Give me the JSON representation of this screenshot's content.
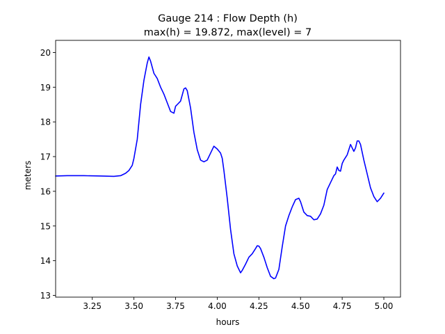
{
  "chart_data": {
    "type": "line",
    "title": "Gauge 214 : Flow Depth (h)",
    "subtitle": "max(h) =  19.872,    max(level) = 7",
    "xlabel": "hours",
    "ylabel": "meters",
    "xlim": [
      3.03,
      5.1
    ],
    "ylim": [
      12.95,
      20.35
    ],
    "xticks": [
      3.25,
      3.5,
      3.75,
      4.0,
      4.25,
      4.5,
      4.75,
      5.0
    ],
    "xtick_labels": [
      "3.25",
      "3.50",
      "3.75",
      "4.00",
      "4.25",
      "4.50",
      "4.75",
      "5.00"
    ],
    "yticks": [
      13,
      14,
      15,
      16,
      17,
      18,
      19,
      20
    ],
    "ytick_labels": [
      "13",
      "14",
      "15",
      "16",
      "17",
      "18",
      "19",
      "20"
    ],
    "grid": false,
    "series": [
      {
        "color": "#0000ff",
        "x": [
          3.03,
          3.1,
          3.2,
          3.3,
          3.38,
          3.42,
          3.45,
          3.47,
          3.49,
          3.5,
          3.52,
          3.54,
          3.56,
          3.58,
          3.59,
          3.6,
          3.62,
          3.64,
          3.66,
          3.68,
          3.7,
          3.72,
          3.74,
          3.75,
          3.76,
          3.78,
          3.8,
          3.81,
          3.82,
          3.84,
          3.86,
          3.88,
          3.9,
          3.92,
          3.94,
          3.96,
          3.98,
          4.0,
          4.02,
          4.03,
          4.04,
          4.06,
          4.08,
          4.1,
          4.12,
          4.14,
          4.15,
          4.17,
          4.19,
          4.21,
          4.23,
          4.24,
          4.25,
          4.26,
          4.28,
          4.3,
          4.32,
          4.34,
          4.35,
          4.37,
          4.39,
          4.41,
          4.43,
          4.45,
          4.47,
          4.49,
          4.5,
          4.52,
          4.54,
          4.56,
          4.58,
          4.6,
          4.62,
          4.64,
          4.66,
          4.68,
          4.7,
          4.71,
          4.72,
          4.73,
          4.74,
          4.75,
          4.76,
          4.78,
          4.8,
          4.81,
          4.82,
          4.83,
          4.84,
          4.85,
          4.86,
          4.88,
          4.9,
          4.92,
          4.94,
          4.96,
          4.98,
          5.0
        ],
        "y": [
          16.44,
          16.45,
          16.45,
          16.44,
          16.43,
          16.45,
          16.52,
          16.6,
          16.75,
          16.95,
          17.5,
          18.5,
          19.2,
          19.7,
          19.87,
          19.75,
          19.4,
          19.25,
          19.0,
          18.8,
          18.55,
          18.3,
          18.25,
          18.45,
          18.5,
          18.6,
          18.95,
          18.98,
          18.9,
          18.4,
          17.7,
          17.2,
          16.9,
          16.85,
          16.9,
          17.1,
          17.3,
          17.22,
          17.1,
          16.95,
          16.6,
          15.8,
          14.9,
          14.2,
          13.85,
          13.65,
          13.72,
          13.9,
          14.1,
          14.2,
          14.35,
          14.43,
          14.42,
          14.35,
          14.1,
          13.8,
          13.55,
          13.48,
          13.5,
          13.75,
          14.4,
          15.0,
          15.3,
          15.55,
          15.76,
          15.8,
          15.7,
          15.4,
          15.3,
          15.28,
          15.18,
          15.2,
          15.35,
          15.6,
          16.05,
          16.25,
          16.45,
          16.5,
          16.7,
          16.6,
          16.58,
          16.8,
          16.9,
          17.05,
          17.35,
          17.25,
          17.15,
          17.25,
          17.45,
          17.45,
          17.35,
          16.9,
          16.5,
          16.1,
          15.85,
          15.7,
          15.8,
          15.95
        ]
      }
    ]
  }
}
